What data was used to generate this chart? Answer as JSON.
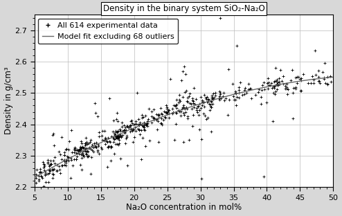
{
  "title": "Density in the binary system SiO₂-Na₂O",
  "xlabel": "Na₂O concentration in mol%",
  "ylabel": "Density in g/cm³",
  "xlim": [
    5,
    50
  ],
  "ylim": [
    2.2,
    2.75
  ],
  "yticks": [
    2.2,
    2.3,
    2.4,
    2.5,
    2.6,
    2.7
  ],
  "xticks": [
    5,
    10,
    15,
    20,
    25,
    30,
    35,
    40,
    45,
    50
  ],
  "legend_labels": [
    "All 614 experimental data",
    "Model fit excluding 68 outliers"
  ],
  "scatter_color": "black",
  "line_color": "#666666",
  "background_color": "#d8d8d8",
  "plot_bg_color": "white",
  "seed": 7,
  "n_points": 614,
  "n_outliers": 68,
  "title_fontsize": 8.5,
  "axis_label_fontsize": 8.5,
  "tick_fontsize": 8,
  "legend_fontsize": 8,
  "model_x": [
    5,
    10,
    15,
    20,
    25,
    30,
    35,
    40,
    45,
    50
  ],
  "model_y": [
    2.222,
    2.292,
    2.35,
    2.395,
    2.43,
    2.462,
    2.49,
    2.515,
    2.537,
    2.557
  ]
}
